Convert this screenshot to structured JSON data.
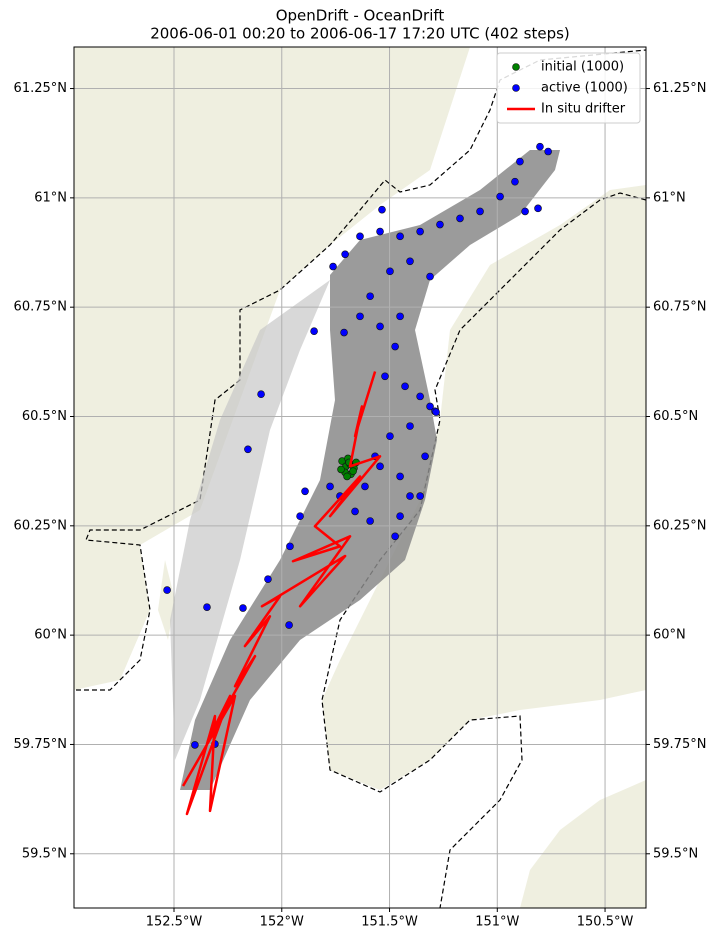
{
  "chart_data": {
    "type": "map",
    "title": "OpenDrift - OceanDrift",
    "subtitle": "2006-06-01 00:20 to 2006-06-17 17:20 UTC (402 steps)",
    "xlim": [
      -152.964,
      -150.31
    ],
    "ylim": [
      59.376,
      61.345
    ],
    "xticks": [
      {
        "value": -152.5,
        "label": "152.5°W"
      },
      {
        "value": -152,
        "label": "152°W"
      },
      {
        "value": -151.5,
        "label": "151.5°W"
      },
      {
        "value": -151,
        "label": "151°W"
      },
      {
        "value": -150.5,
        "label": "150.5°W"
      }
    ],
    "yticks": [
      {
        "value": 59.5,
        "label": "59.5°N"
      },
      {
        "value": 59.75,
        "label": "59.75°N"
      },
      {
        "value": 60,
        "label": "60°N"
      },
      {
        "value": 60.25,
        "label": "60.25°N"
      },
      {
        "value": 60.5,
        "label": "60.5°N"
      },
      {
        "value": 60.75,
        "label": "60.75°N"
      },
      {
        "value": 61,
        "label": "61°N"
      },
      {
        "value": 61.25,
        "label": "61.25°N"
      }
    ],
    "grid": true,
    "legend": "upper right",
    "series": [
      {
        "name": "initial (1000)",
        "type": "scatter",
        "color": "#008000",
        "x": [
          -151.72,
          -151.702,
          -151.683,
          -151.665,
          -151.706,
          -151.679,
          -151.693,
          -151.655,
          -151.725,
          -151.669,
          -151.697,
          -151.688
        ],
        "y": [
          60.398,
          60.386,
          60.391,
          60.382,
          60.372,
          60.368,
          60.404,
          60.395,
          60.379,
          60.375,
          60.363,
          60.395
        ]
      },
      {
        "name": "active (1000)",
        "type": "scatter",
        "color": "#0000ff",
        "x": [
          -151.535,
          -151.762,
          -151.706,
          -151.637,
          -151.544,
          -151.451,
          -151.358,
          -151.266,
          -151.173,
          -151.08,
          -150.987,
          -150.918,
          -150.895,
          -150.802,
          -150.764,
          -150.871,
          -150.811,
          -151.312,
          -151.405,
          -151.498,
          -151.59,
          -151.637,
          -151.544,
          -151.451,
          -151.474,
          -151.521,
          -151.428,
          -151.358,
          -151.312,
          -151.289,
          -151.405,
          -151.498,
          -151.567,
          -151.614,
          -151.544,
          -151.451,
          -151.405,
          -151.451,
          -151.474,
          -151.59,
          -151.66,
          -151.73,
          -151.776,
          -151.892,
          -151.915,
          -151.962,
          -152.064,
          -152.18,
          -152.347,
          -151.966,
          -152.096,
          -152.157,
          -152.532,
          -152.403,
          -152.31,
          -151.85,
          -151.711,
          -151.335,
          -151.284,
          -151.358
        ],
        "y": [
          60.973,
          60.843,
          60.871,
          60.912,
          60.923,
          60.912,
          60.923,
          60.939,
          60.953,
          60.969,
          61.003,
          61.037,
          61.083,
          61.117,
          61.106,
          60.969,
          60.976,
          60.82,
          60.855,
          60.832,
          60.775,
          60.729,
          60.706,
          60.729,
          60.66,
          60.592,
          60.569,
          60.546,
          60.523,
          60.512,
          60.478,
          60.455,
          60.409,
          60.34,
          60.386,
          60.363,
          60.318,
          60.272,
          60.226,
          60.261,
          60.283,
          60.318,
          60.34,
          60.329,
          60.272,
          60.203,
          60.128,
          60.062,
          60.064,
          60.023,
          60.551,
          60.425,
          60.103,
          59.749,
          59.751,
          60.695,
          60.692,
          60.409,
          60.51,
          60.318
        ]
      },
      {
        "name": "In situ drifter",
        "type": "line",
        "color": "#ff0000",
        "x": [
          -151.567,
          -151.66,
          -151.628,
          -151.683,
          -151.544,
          -151.776,
          -151.637,
          -151.846,
          -151.73,
          -151.948,
          -151.683,
          -151.915,
          -151.706,
          -152.092,
          -152.008,
          -152.171,
          -152.055,
          -152.217,
          -152.124,
          -152.333,
          -152.24,
          -152.44,
          -152.31,
          -152.333,
          -152.217,
          -152.458
        ],
        "y": [
          60.603,
          60.455,
          60.523,
          60.386,
          60.409,
          60.272,
          60.363,
          60.249,
          60.203,
          60.169,
          60.226,
          60.066,
          60.181,
          60.066,
          60.089,
          59.975,
          60.043,
          59.883,
          59.952,
          59.769,
          59.861,
          59.591,
          59.815,
          59.598,
          59.861,
          59.655
        ]
      }
    ]
  }
}
